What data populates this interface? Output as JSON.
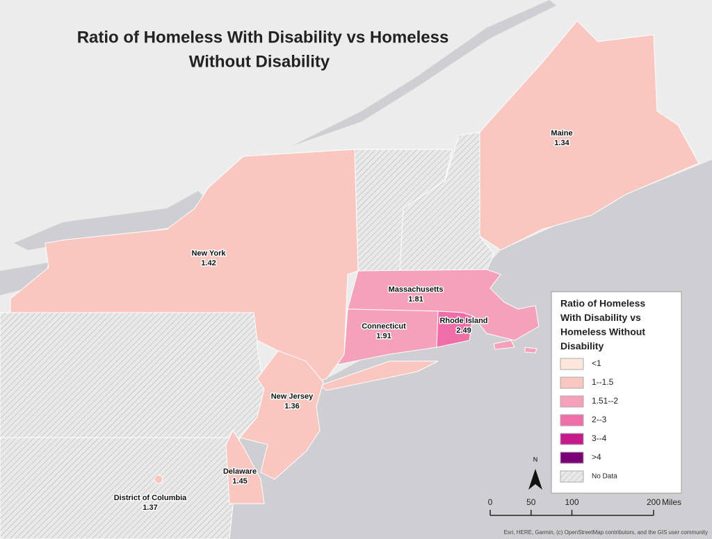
{
  "title_lines": [
    "Ratio of Homeless With Disability vs  Homeless",
    "Without Disability"
  ],
  "states": [
    {
      "name": "Maine",
      "value": 1.34,
      "color": "#fac6c0"
    },
    {
      "name": "New York",
      "value": 1.42,
      "color": "#fac6c0"
    },
    {
      "name": "Massachusetts",
      "value": 1.81,
      "color": "#f6a1bb"
    },
    {
      "name": "Connecticut",
      "value": 1.91,
      "color": "#f6a1bb"
    },
    {
      "name": "Rhode Island",
      "value": 2.49,
      "color": "#f06ea8"
    },
    {
      "name": "New Jersey",
      "value": 1.36,
      "color": "#fac6c0"
    },
    {
      "name": "Delaware",
      "value": 1.45,
      "color": "#fac6c0"
    },
    {
      "name": "District of Columbia",
      "value": 1.37,
      "color": "#fac6c0"
    }
  ],
  "legend": {
    "title_lines": [
      "Ratio of Homeless",
      "With Disability vs",
      "Homeless Without",
      "Disability"
    ],
    "items": [
      {
        "label": "<1",
        "color": "#fde7dc"
      },
      {
        "label": "1--1.5",
        "color": "#fac6c0"
      },
      {
        "label": "1.51--2",
        "color": "#f6a1bb"
      },
      {
        "label": "2--3",
        "color": "#f06ea8"
      },
      {
        "label": "3--4",
        "color": "#c51b8a"
      },
      {
        "label": ">4",
        "color": "#7a0177"
      },
      {
        "label": "No Data",
        "color": "hatch"
      }
    ]
  },
  "north_label": "N",
  "scale": {
    "ticks": [
      0,
      50,
      100,
      200
    ],
    "unit": "Miles"
  },
  "attribution": "Esri, HERE, Garmin, (c) OpenStreetMap contributors, and the GIS user community"
}
